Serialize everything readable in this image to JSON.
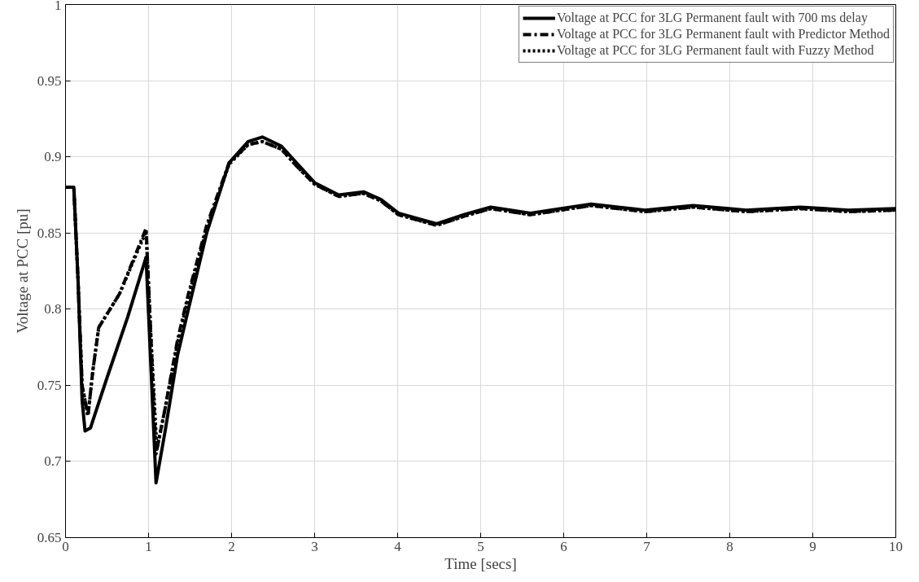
{
  "chart_data": {
    "type": "line",
    "xlabel": "Time [secs]",
    "ylabel": "Voltage at PCC [pu]",
    "xlim": [
      0,
      10
    ],
    "ylim": [
      0.65,
      1
    ],
    "xticks": [
      0,
      1,
      2,
      3,
      4,
      5,
      6,
      7,
      8,
      9,
      10
    ],
    "yticks": [
      0.65,
      0.7,
      0.75,
      0.8,
      0.85,
      0.9,
      0.95,
      1
    ],
    "grid": true,
    "legend": "top right",
    "series": [
      {
        "name": "Voltage at PCC for 3LG Permanent fault with 700 ms delay",
        "color": "#000000",
        "line_style": "solid",
        "x": [
          0,
          0.1,
          0.15,
          0.2,
          0.235,
          0.3,
          0.5,
          0.75,
          0.97,
          1.03,
          1.09,
          1.2,
          1.35,
          1.48,
          1.7,
          1.97,
          2.2,
          2.37,
          2.6,
          2.8,
          3.0,
          3.29,
          3.59,
          3.8,
          4.01,
          4.47,
          4.8,
          5.12,
          5.6,
          6.33,
          6.98,
          7.56,
          8.2,
          8.85,
          9.43,
          10
        ],
        "values": [
          0.88,
          0.88,
          0.82,
          0.74,
          0.72,
          0.722,
          0.755,
          0.795,
          0.834,
          0.76,
          0.686,
          0.72,
          0.77,
          0.8,
          0.85,
          0.896,
          0.91,
          0.913,
          0.907,
          0.895,
          0.883,
          0.875,
          0.877,
          0.872,
          0.863,
          0.856,
          0.862,
          0.867,
          0.863,
          0.869,
          0.865,
          0.868,
          0.865,
          0.867,
          0.865,
          0.866
        ]
      },
      {
        "name": "Voltage at PCC for 3LG Permanent fault with Predictor Method",
        "color": "#000000",
        "line_style": "dashed",
        "x": [
          0,
          0.1,
          0.15,
          0.2,
          0.27,
          0.33,
          0.4,
          0.65,
          0.97,
          1.03,
          1.09,
          1.2,
          1.35,
          1.48,
          1.7,
          1.97,
          2.2,
          2.37,
          2.6,
          2.8,
          3.0,
          3.29,
          3.59,
          3.8,
          4.01,
          4.47,
          4.8,
          5.12,
          5.6,
          6.33,
          6.98,
          7.56,
          8.2,
          8.85,
          9.43,
          10
        ],
        "values": [
          0.88,
          0.88,
          0.82,
          0.75,
          0.73,
          0.76,
          0.788,
          0.81,
          0.853,
          0.78,
          0.705,
          0.735,
          0.78,
          0.81,
          0.855,
          0.896,
          0.908,
          0.91,
          0.905,
          0.893,
          0.882,
          0.874,
          0.876,
          0.871,
          0.862,
          0.855,
          0.861,
          0.866,
          0.862,
          0.868,
          0.864,
          0.867,
          0.864,
          0.866,
          0.864,
          0.865
        ]
      },
      {
        "name": "Voltage at PCC for 3LG Permanent fault with Fuzzy Method",
        "color": "#000000",
        "line_style": "dotted",
        "x": [
          0,
          0.1,
          0.15,
          0.2,
          0.27,
          0.33,
          0.4,
          0.65,
          0.97,
          1.03,
          1.1,
          1.2,
          1.35,
          1.48,
          1.7,
          1.97,
          2.2,
          2.37,
          2.6,
          2.8,
          3.0,
          3.29,
          3.59,
          3.8,
          4.01,
          4.47,
          4.8,
          5.12,
          5.6,
          6.33,
          6.98,
          7.56,
          8.2,
          8.85,
          9.43,
          10
        ],
        "values": [
          0.88,
          0.88,
          0.82,
          0.75,
          0.73,
          0.76,
          0.788,
          0.81,
          0.851,
          0.78,
          0.708,
          0.735,
          0.778,
          0.808,
          0.853,
          0.895,
          0.908,
          0.91,
          0.905,
          0.893,
          0.882,
          0.874,
          0.876,
          0.871,
          0.862,
          0.855,
          0.861,
          0.866,
          0.862,
          0.868,
          0.864,
          0.867,
          0.864,
          0.866,
          0.864,
          0.865
        ]
      }
    ]
  }
}
